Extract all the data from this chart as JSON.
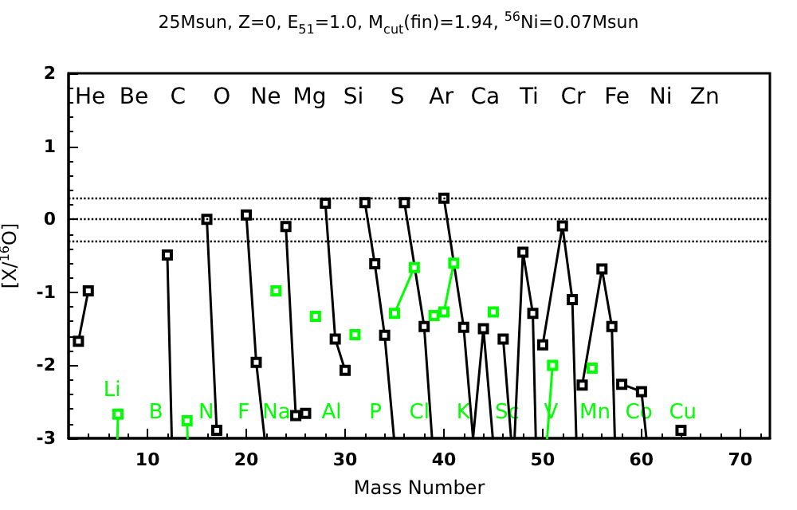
{
  "chart_data": {
    "type": "line",
    "title": "25Msun, Z=0, E$_{51}$=1.0, M$_{cut}$(fin)=1.94, $^{56}$Ni=0.07Msun",
    "xlabel": "Mass Number",
    "ylabel": "[X/$^{16}$O]",
    "xlim": [
      2,
      73
    ],
    "xticks": [
      10,
      20,
      30,
      40,
      50,
      60,
      70
    ],
    "ylim": [
      -3,
      2
    ],
    "yticks": [
      -3,
      -2,
      -1,
      0,
      1,
      2
    ],
    "grid": false,
    "marker": "square",
    "line_style": "solid",
    "ref_lines": [
      {
        "axis": "y",
        "value": 0.3,
        "line_style": "dotted",
        "color": "#000000"
      },
      {
        "axis": "y",
        "value": 0,
        "line_style": "dotted",
        "color": "#000000"
      },
      {
        "axis": "y",
        "value": -0.3,
        "line_style": "dotted",
        "color": "#000000"
      }
    ],
    "series": [
      {
        "color": "#000000",
        "x": [
          3,
          4
        ],
        "values": [
          -1.67,
          -0.98
        ]
      },
      {
        "color": "#000000",
        "x": [
          12,
          12.45
        ],
        "values": [
          -0.49,
          -3
        ]
      },
      {
        "color": "#000000",
        "x": [
          16,
          17
        ],
        "values": [
          0.0,
          -2.89
        ]
      },
      {
        "color": "#000000",
        "x": [
          20,
          21,
          21.85
        ],
        "values": [
          0.06,
          -1.96,
          -3
        ]
      },
      {
        "color": "#000000",
        "x": [
          24,
          25,
          26
        ],
        "values": [
          -0.1,
          -2.69,
          -2.66
        ]
      },
      {
        "color": "#000000",
        "x": [
          28,
          29,
          30
        ],
        "values": [
          0.22,
          -1.64,
          -2.07
        ]
      },
      {
        "color": "#000000",
        "x": [
          32,
          33,
          34,
          34.95
        ],
        "values": [
          0.23,
          -0.61,
          -1.59,
          -3
        ]
      },
      {
        "color": "#000000",
        "x": [
          36,
          38,
          38.8
        ],
        "values": [
          0.23,
          -1.47,
          -3
        ]
      },
      {
        "color": "#000000",
        "x": [
          40,
          42,
          42.95,
          44,
          44.95
        ],
        "values": [
          0.29,
          -1.48,
          -3,
          -1.5,
          -3
        ]
      },
      {
        "color": "#000000",
        "x": [
          46,
          46.8,
          47.15,
          48,
          49,
          49.3
        ],
        "values": [
          -1.64,
          -3,
          -3,
          -0.45,
          -1.29,
          -3
        ]
      },
      {
        "color": "#000000",
        "x": [
          50,
          52,
          53,
          53.4
        ],
        "values": [
          -1.72,
          -0.09,
          -1.1,
          -3
        ]
      },
      {
        "color": "#000000",
        "x": [
          54,
          56,
          57,
          57.3
        ],
        "values": [
          -2.27,
          -0.68,
          -1.47,
          -3
        ]
      },
      {
        "color": "#000000",
        "x": [
          58,
          60,
          60.5
        ],
        "values": [
          -2.26,
          -2.36,
          -3
        ]
      },
      {
        "color": "#000000",
        "x": [
          64
        ],
        "values": [
          -2.89
        ]
      },
      {
        "color": "#00ff00",
        "x": [
          7,
          6.95
        ],
        "values": [
          -2.67,
          -3
        ]
      },
      {
        "color": "#00ff00",
        "x": [
          14,
          14.05
        ],
        "values": [
          -2.76,
          -3
        ]
      },
      {
        "color": "#00ff00",
        "x": [
          23
        ],
        "values": [
          -0.98
        ]
      },
      {
        "color": "#00ff00",
        "x": [
          27
        ],
        "values": [
          -1.33
        ]
      },
      {
        "color": "#00ff00",
        "x": [
          31
        ],
        "values": [
          -1.58
        ]
      },
      {
        "color": "#00ff00",
        "x": [
          35,
          37
        ],
        "values": [
          -1.29,
          -0.66
        ]
      },
      {
        "color": "#00ff00",
        "x": [
          39,
          40,
          41
        ],
        "values": [
          -1.32,
          -1.27,
          -0.6
        ]
      },
      {
        "color": "#00ff00",
        "x": [
          45
        ],
        "values": [
          -1.27
        ]
      },
      {
        "color": "#00ff00",
        "x": [
          50.45,
          51
        ],
        "values": [
          -3,
          -2.0
        ]
      },
      {
        "color": "#00ff00",
        "x": [
          55
        ],
        "values": [
          -2.04
        ]
      }
    ],
    "annotations": [
      "He",
      "Li",
      "Be",
      "B",
      "C",
      "N",
      "O",
      "F",
      "Ne",
      "Na",
      "Mg",
      "Al",
      "Si",
      "P",
      "S",
      "Cl",
      "Ar",
      "K",
      "Ca",
      "Sc",
      "Ti",
      "V",
      "Cr",
      "Mn",
      "Fe",
      "Co",
      "Ni",
      "Cu",
      "Zn"
    ]
  }
}
